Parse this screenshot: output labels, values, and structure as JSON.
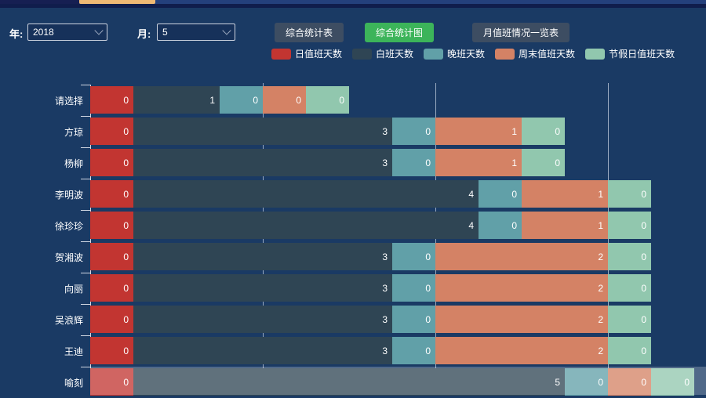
{
  "window": {
    "tab_indicator_color": "#efb974"
  },
  "toolbar": {
    "year_label": "年:",
    "year_value": "2018",
    "month_label": "月:",
    "month_value": "5",
    "active_color": "#3cb45a",
    "inactive_color": "#3d4d62",
    "buttons": [
      {
        "label": "综合统计表",
        "active": false
      },
      {
        "label": "综合统计图",
        "active": true
      },
      {
        "label": "月值班情况一览表",
        "active": false
      }
    ]
  },
  "chart_data": {
    "type": "bar",
    "orientation": "horizontal",
    "stacked": true,
    "legend_position": "top",
    "value_labels": "inside-right",
    "categories": [
      "请选择",
      "方琼",
      "杨柳",
      "李明波",
      "徐珍珍",
      "贺湘波",
      "向丽",
      "吴浪辉",
      "王迪",
      "喻刻"
    ],
    "series": [
      {
        "name": "日值班天数",
        "color": "#c23531",
        "values": [
          0,
          0,
          0,
          0,
          0,
          0,
          0,
          0,
          0,
          0
        ]
      },
      {
        "name": "白班天数",
        "color": "#2f4554",
        "values": [
          1,
          3,
          3,
          4,
          4,
          3,
          3,
          3,
          3,
          5
        ]
      },
      {
        "name": "晚班天数",
        "color": "#61a0a8",
        "values": [
          0,
          0,
          0,
          0,
          0,
          0,
          0,
          0,
          0,
          0
        ]
      },
      {
        "name": "周末值班天数",
        "color": "#d48265",
        "values": [
          0,
          1,
          1,
          1,
          1,
          2,
          2,
          2,
          2,
          0
        ]
      },
      {
        "name": "节假日值班天数",
        "color": "#91c7ae",
        "values": [
          0,
          0,
          0,
          0,
          0,
          0,
          0,
          0,
          0,
          0
        ]
      }
    ],
    "x_axis": {
      "min": 0,
      "gridline_values": [
        2,
        4,
        6
      ],
      "units_per_px": "110px per day"
    },
    "highlighted_row": "喻刻",
    "background_color": "#1a3a64"
  }
}
